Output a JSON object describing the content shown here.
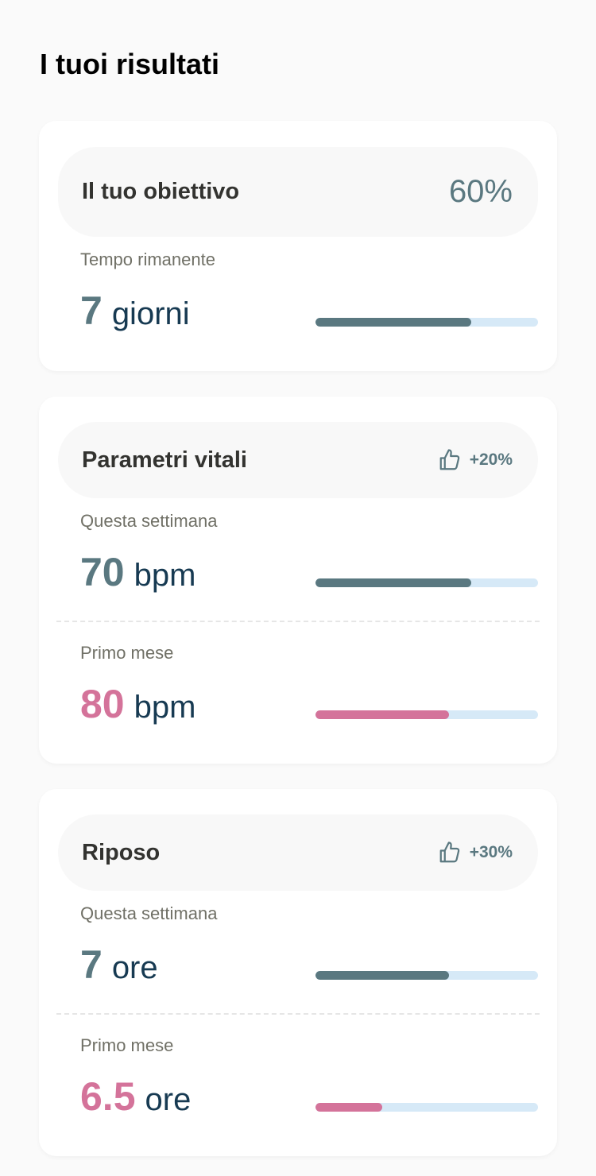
{
  "title": "I tuoi risultati",
  "colors": {
    "accent": "#5a7880",
    "pink": "#d4739a",
    "track": "#d6e9f7"
  },
  "goal": {
    "title": "Il tuo obiettivo",
    "percent": "60%",
    "label": "Tempo rimanente",
    "value": "7",
    "unit": "giorni",
    "progress": 0.7
  },
  "vitals": {
    "title": "Parametri vitali",
    "badge_icon": "thumbs-up-icon",
    "badge": "+20%",
    "rows": [
      {
        "label": "Questa settimana",
        "value": "70",
        "unit": "bpm",
        "progress": 0.7
      },
      {
        "label": "Primo mese",
        "value": "80",
        "unit": "bpm",
        "progress": 0.6
      }
    ]
  },
  "rest": {
    "title": "Riposo",
    "badge_icon": "thumbs-up-icon",
    "badge": "+30%",
    "rows": [
      {
        "label": "Questa settimana",
        "value": "7",
        "unit": "ore",
        "progress": 0.6
      },
      {
        "label": "Primo mese",
        "value": "6.5",
        "unit": "ore",
        "progress": 0.3
      }
    ]
  }
}
